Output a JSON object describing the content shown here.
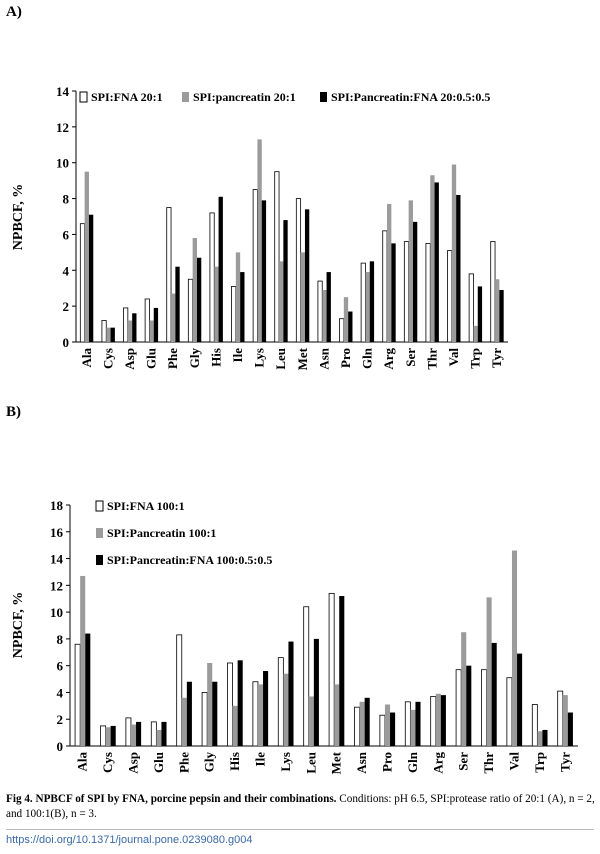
{
  "panels": {
    "a_label": "A)",
    "b_label": "B)"
  },
  "caption": {
    "title": "Fig 4. NPBCF of SPI by FNA, porcine pepsin and their combinations.",
    "body": " Conditions: pH 6.5, SPI:protease ratio of 20:1 (A), n = 2, and 100:1(B), n = 3."
  },
  "doi": "https://doi.org/10.1371/journal.pone.0239080.g004",
  "colors": {
    "s1_fill": "#ffffff",
    "s1_stroke": "#000000",
    "s2": "#9b9b9b",
    "s3": "#000000"
  },
  "chart_data": [
    {
      "type": "bar",
      "ylabel": "NPBCF, %",
      "ylim": [
        0,
        14
      ],
      "yticks": [
        0,
        2,
        4,
        6,
        8,
        10,
        12,
        14
      ],
      "legend_placement": "top",
      "categories": [
        "Ala",
        "Cys",
        "Asp",
        "Glu",
        "Phe",
        "Gly",
        "His",
        "Ile",
        "Lys",
        "Leu",
        "Met",
        "Asn",
        "Pro",
        "Gln",
        "Arg",
        "Ser",
        "Thr",
        "Val",
        "Trp",
        "Tyr"
      ],
      "series": [
        {
          "name": "SPI:FNA 20:1",
          "values": [
            6.6,
            1.2,
            1.9,
            2.4,
            7.5,
            3.5,
            7.2,
            3.1,
            8.5,
            9.5,
            8.0,
            3.4,
            1.3,
            4.4,
            6.2,
            5.6,
            5.5,
            5.1,
            3.8,
            5.6
          ]
        },
        {
          "name": "SPI:pancreatin 20:1",
          "values": [
            9.5,
            0.8,
            1.2,
            1.2,
            2.7,
            5.8,
            4.2,
            5.0,
            11.3,
            4.5,
            5.0,
            2.9,
            2.5,
            3.9,
            7.7,
            7.9,
            9.3,
            9.9,
            0.9,
            3.5
          ]
        },
        {
          "name": "SPI:Pancreatin:FNA 20:0.5:0.5",
          "values": [
            7.1,
            0.8,
            1.6,
            1.9,
            4.2,
            4.7,
            8.1,
            3.9,
            7.9,
            6.8,
            7.4,
            3.9,
            1.7,
            4.5,
            5.5,
            6.7,
            8.9,
            8.2,
            3.1,
            2.9
          ]
        }
      ]
    },
    {
      "type": "bar",
      "ylabel": "NPBCF, %",
      "ylim": [
        0,
        18
      ],
      "yticks": [
        0,
        2,
        4,
        6,
        8,
        10,
        12,
        14,
        16,
        18
      ],
      "legend_placement": "top-left",
      "categories": [
        "Ala",
        "Cys",
        "Asp",
        "Glu",
        "Phe",
        "Gly",
        "His",
        "Ile",
        "Lys",
        "Leu",
        "Met",
        "Asn",
        "Pro",
        "Gln",
        "Arg",
        "Ser",
        "Thr",
        "Val",
        "Trp",
        "Tyr"
      ],
      "series": [
        {
          "name": "SPI:FNA 100:1",
          "values": [
            7.6,
            1.5,
            2.1,
            1.8,
            8.3,
            4.0,
            6.2,
            4.8,
            6.6,
            10.4,
            11.4,
            2.9,
            2.3,
            3.3,
            3.7,
            5.7,
            5.7,
            5.1,
            3.1,
            4.1
          ]
        },
        {
          "name": "SPI:Pancreatin 100:1",
          "values": [
            12.7,
            1.4,
            1.6,
            1.2,
            3.6,
            6.2,
            3.0,
            4.6,
            5.4,
            3.7,
            4.6,
            3.3,
            3.1,
            2.7,
            3.9,
            8.5,
            11.1,
            14.6,
            1.1,
            3.8
          ]
        },
        {
          "name": "SPI:Pancreatin:FNA 100:0.5:0.5",
          "values": [
            8.4,
            1.5,
            1.8,
            1.8,
            4.8,
            4.8,
            6.4,
            5.6,
            7.8,
            8.0,
            11.2,
            3.6,
            2.5,
            3.3,
            3.8,
            6.0,
            7.7,
            6.9,
            1.2,
            2.5
          ]
        }
      ]
    }
  ]
}
